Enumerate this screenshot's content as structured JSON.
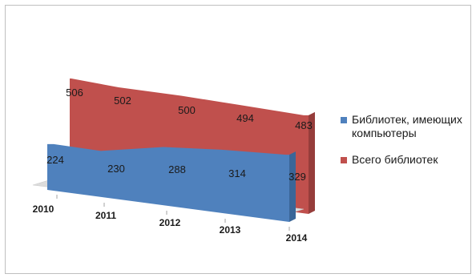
{
  "chart_data": {
    "type": "area",
    "title": "",
    "xlabel": "",
    "ylabel": "",
    "categories": [
      "2010",
      "2011",
      "2012",
      "2013",
      "2014"
    ],
    "series": [
      {
        "name": "Библиотек, имеющих компьютеры",
        "values": [
          224,
          230,
          288,
          314,
          329
        ],
        "color": "#4f81bd"
      },
      {
        "name": "Всего библиотек",
        "values": [
          506,
          502,
          500,
          494,
          483
        ],
        "color": "#c0504d"
      }
    ],
    "legend_position": "right",
    "ylim": [
      0,
      600
    ],
    "grid": false,
    "three_d": true
  }
}
